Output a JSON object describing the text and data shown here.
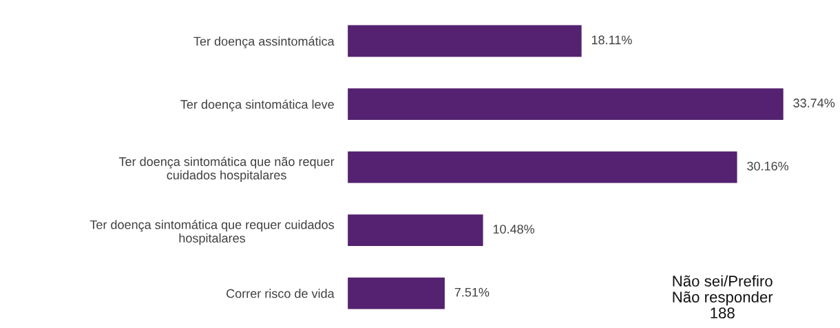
{
  "chart_data": {
    "type": "bar",
    "orientation": "horizontal",
    "categories": [
      "Ter doença assintomática",
      "Ter doença sintomática leve",
      "Ter doença sintomática que não requer\ncuidados hospitalares",
      "Ter doença sintomática que requer cuidados\nhospitalares",
      "Correr risco de vida"
    ],
    "values": [
      18.11,
      33.74,
      30.16,
      10.48,
      7.51
    ],
    "value_labels": [
      "18.11%",
      "33.74%",
      "30.16%",
      "10.48%",
      "7.51%"
    ],
    "color": "#542270",
    "annotations": [
      "Não sei/Prefiro\nNão responder\n188"
    ]
  }
}
